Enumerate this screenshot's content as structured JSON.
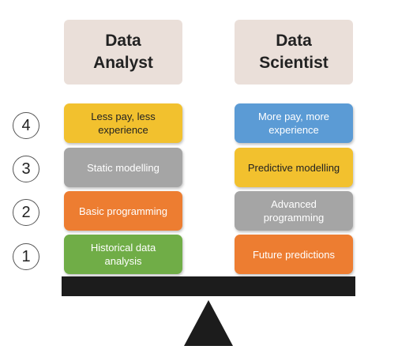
{
  "headers": {
    "left": "Data\nAnalyst",
    "right": "Data\nScientist"
  },
  "levels": [
    "4",
    "3",
    "2",
    "1"
  ],
  "left_boxes": [
    {
      "label": "Less pay, less\nexperience",
      "color": "#f2c12e",
      "text": "dark"
    },
    {
      "label": "Static modelling",
      "color": "#a5a5a5",
      "text": "light"
    },
    {
      "label": "Basic programming",
      "color": "#ed7d31",
      "text": "light"
    },
    {
      "label": "Historical data\nanalysis",
      "color": "#70ad47",
      "text": "light"
    }
  ],
  "right_boxes": [
    {
      "label": "More pay, more\nexperience",
      "color": "#5b9bd5",
      "text": "light"
    },
    {
      "label": "Predictive modelling",
      "color": "#f2c12e",
      "text": "dark"
    },
    {
      "label": "Advanced\nprogramming",
      "color": "#a5a5a5",
      "text": "light"
    },
    {
      "label": "Future predictions",
      "color": "#ed7d31",
      "text": "light"
    }
  ],
  "colors": {
    "header_bg": "#eadfd9",
    "beam": "#1c1c1c"
  }
}
